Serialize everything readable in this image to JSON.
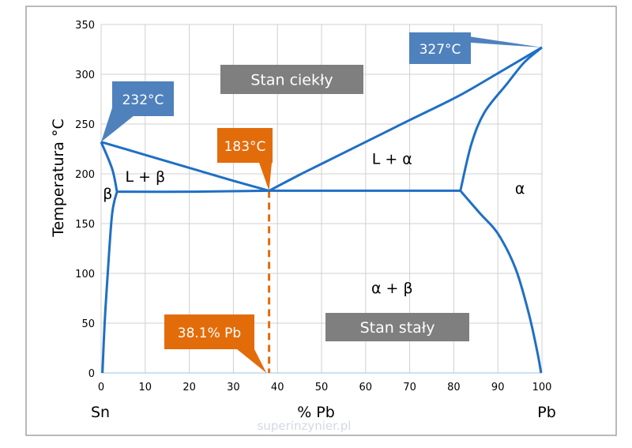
{
  "chart_data": {
    "type": "line",
    "title": "",
    "xlabel": "% Pb",
    "ylabel": "Temperatura °C",
    "xlim": [
      0,
      100
    ],
    "ylim": [
      0,
      350
    ],
    "x_ticks": [
      "0",
      "10",
      "20",
      "30",
      "40",
      "50",
      "60",
      "70",
      "80",
      "90",
      "100"
    ],
    "y_ticks": [
      "0",
      "50",
      "100",
      "150",
      "200",
      "250",
      "300",
      "350"
    ],
    "grid": true,
    "end_labels": {
      "left": "Sn",
      "right": "Pb"
    },
    "line_color": "#1f6fc5",
    "series": [
      {
        "points": [
          [
            0,
            232
          ],
          [
            10,
            219
          ],
          [
            20,
            206
          ],
          [
            30,
            193
          ],
          [
            38.1,
            183
          ]
        ]
      },
      {
        "points": [
          [
            38.1,
            183
          ],
          [
            45,
            199
          ],
          [
            50,
            210
          ],
          [
            60,
            232
          ],
          [
            70,
            254
          ],
          [
            81,
            278
          ],
          [
            90,
            301
          ],
          [
            100,
            327
          ]
        ]
      },
      {
        "points": [
          [
            3.6,
            182
          ],
          [
            20,
            182
          ],
          [
            38.1,
            183
          ],
          [
            60,
            183
          ],
          [
            81.5,
            183
          ]
        ]
      },
      {
        "points": [
          [
            0,
            232
          ],
          [
            2.5,
            205
          ],
          [
            3.6,
            182
          ]
        ]
      },
      {
        "points": [
          [
            3.6,
            182
          ],
          [
            2.5,
            160
          ],
          [
            1.5,
            100
          ],
          [
            0.8,
            50
          ],
          [
            0.3,
            0
          ]
        ]
      },
      {
        "points": [
          [
            81.5,
            183
          ],
          [
            84,
            230
          ],
          [
            87,
            262
          ],
          [
            92,
            290
          ],
          [
            96,
            312
          ],
          [
            100,
            327
          ]
        ]
      },
      {
        "points": [
          [
            81.5,
            183
          ],
          [
            86,
            160
          ],
          [
            90,
            140
          ],
          [
            94,
            105
          ],
          [
            97,
            60
          ],
          [
            99,
            20
          ],
          [
            99.8,
            0
          ]
        ]
      }
    ],
    "eutectic_line": {
      "x": 38.1,
      "color": "#e36c0a"
    },
    "region_labels": [
      {
        "text": "L + β",
        "x": 10,
        "y": 192
      },
      {
        "text": "L + α",
        "x": 66,
        "y": 210
      },
      {
        "text": "β",
        "x": 1.5,
        "y": 175
      },
      {
        "text": "α",
        "x": 95,
        "y": 180
      },
      {
        "text": "α + β",
        "x": 66,
        "y": 80
      }
    ],
    "callouts": [
      {
        "text": "232°C",
        "color": "#4f81bd",
        "target": [
          0,
          232
        ]
      },
      {
        "text": "327°C",
        "color": "#4f81bd",
        "target": [
          100,
          327
        ]
      },
      {
        "text": "183°C",
        "color": "#e36c0a",
        "target": [
          38.1,
          183
        ]
      },
      {
        "text": "38.1% Pb",
        "color": "#e36c0a",
        "target": [
          37.5,
          0
        ]
      }
    ],
    "boxes": [
      {
        "text": "Stan ciekły",
        "color": "#7f7f7f"
      },
      {
        "text": "Stan stały",
        "color": "#7f7f7f"
      }
    ]
  },
  "watermark": "superinzynier.pl"
}
